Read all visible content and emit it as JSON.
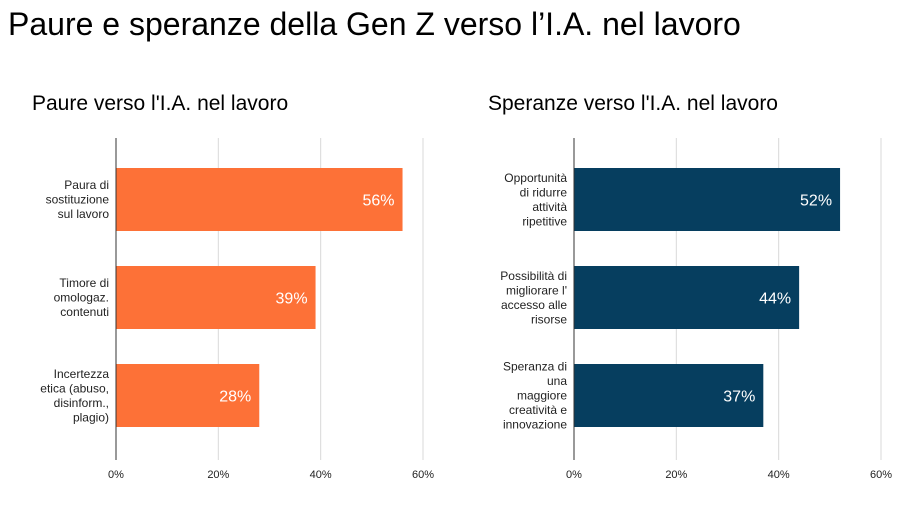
{
  "page": {
    "title": "Paure e speranze della Gen Z verso l’I.A. nel lavoro"
  },
  "colors": {
    "fears": "#fd7137",
    "hopes": "#063e5f",
    "grid": "#d9d9d9",
    "axis": "#333333"
  },
  "chart_data": [
    {
      "type": "bar",
      "orientation": "horizontal",
      "title": "Paure verso l'I.A. nel lavoro",
      "categories": [
        [
          "Paura di",
          "sostituzione",
          "sul lavoro"
        ],
        [
          "Timore di",
          "omologaz.",
          "contenuti"
        ],
        [
          "Incertezza",
          "etica (abuso,",
          "disinform.,",
          "plagio)"
        ]
      ],
      "values": [
        56,
        39,
        28
      ],
      "data_labels": [
        "56%",
        "39%",
        "28%"
      ],
      "xlim": [
        0,
        60
      ],
      "ticks": [
        0,
        20,
        40,
        60
      ],
      "tick_labels": [
        "0%",
        "20%",
        "40%",
        "60%"
      ],
      "grid": true,
      "color": "#fd7137"
    },
    {
      "type": "bar",
      "orientation": "horizontal",
      "title": "Speranze verso l'I.A. nel lavoro",
      "categories": [
        [
          "Opportunità",
          "di ridurre",
          "attività",
          "ripetitive"
        ],
        [
          "Possibilità di",
          "migliorare l'",
          "accesso alle",
          "risorse"
        ],
        [
          "Speranza di",
          "una",
          "maggiore",
          "creatività e",
          "innovazione"
        ]
      ],
      "values": [
        52,
        44,
        37
      ],
      "data_labels": [
        "52%",
        "44%",
        "37%"
      ],
      "xlim": [
        0,
        60
      ],
      "ticks": [
        0,
        20,
        40,
        60
      ],
      "tick_labels": [
        "0%",
        "20%",
        "40%",
        "60%"
      ],
      "grid": true,
      "color": "#063e5f"
    }
  ]
}
